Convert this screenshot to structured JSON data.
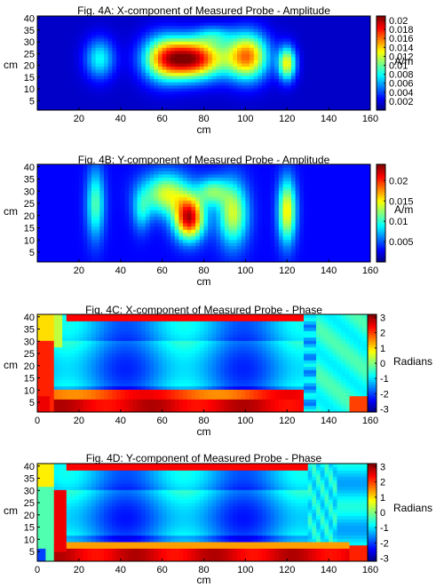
{
  "chart_data": [
    {
      "type": "heatmap",
      "title": "Fig. 4A: X-component of Measured Probe - Amplitude",
      "xlabel": "cm",
      "ylabel": "cm",
      "xlim": [
        0,
        160
      ],
      "ylim": [
        1,
        41
      ],
      "x_ticks": [
        "20",
        "40",
        "60",
        "80",
        "100",
        "120",
        "140",
        "160"
      ],
      "y_ticks": [
        "5",
        "10",
        "15",
        "20",
        "25",
        "30",
        "35",
        "40"
      ],
      "colorbar": {
        "label": "A/m",
        "range": [
          0,
          0.021
        ],
        "ticks": [
          "0.002",
          "0.004",
          "0.006",
          "0.008",
          "0.01",
          "0.012",
          "0.014",
          "0.016",
          "0.018",
          "0.02"
        ]
      },
      "field": "amp_x",
      "peak_regions": [
        {
          "x": 74,
          "y": 23,
          "value": 0.02
        },
        {
          "x": 30,
          "y": 23,
          "value": 0.008
        },
        {
          "x": 101,
          "y": 24,
          "value": 0.016
        },
        {
          "x": 120,
          "y": 21,
          "value": 0.013
        }
      ]
    },
    {
      "type": "heatmap",
      "title": "Fig. 4B: Y-component of Measured Probe - Amplitude",
      "xlabel": "cm",
      "ylabel": "cm",
      "xlim": [
        0,
        160
      ],
      "ylim": [
        1,
        41
      ],
      "x_ticks": [
        "20",
        "40",
        "60",
        "80",
        "100",
        "120",
        "140",
        "160"
      ],
      "y_ticks": [
        "5",
        "10",
        "15",
        "20",
        "25",
        "30",
        "35",
        "40"
      ],
      "colorbar": {
        "label": "A/m",
        "range": [
          0,
          0.024
        ],
        "ticks": [
          "0.005",
          "0.01",
          "0.015",
          "0.02"
        ]
      },
      "field": "amp_y",
      "peak_regions": [
        {
          "x": 73,
          "y": 19,
          "value": 0.022
        },
        {
          "x": 62,
          "y": 29,
          "value": 0.014
        },
        {
          "x": 94,
          "y": 21,
          "value": 0.014
        },
        {
          "x": 120,
          "y": 22,
          "value": 0.016
        }
      ]
    },
    {
      "type": "heatmap",
      "title": "Fig. 4C: X-component of Measured Probe - Phase",
      "xlabel": "cm",
      "ylabel": "cm",
      "xlim": [
        0,
        160
      ],
      "ylim": [
        1,
        41
      ],
      "x_ticks": [
        "0",
        "20",
        "40",
        "60",
        "80",
        "100",
        "120",
        "140",
        "160"
      ],
      "y_ticks": [
        "5",
        "10",
        "15",
        "20",
        "25",
        "30",
        "35",
        "40"
      ],
      "colorbar": {
        "label": "Radians",
        "range": [
          -3.2,
          3.2
        ],
        "ticks": [
          "3",
          "2",
          "1",
          "0",
          "-1",
          "-2",
          "-3"
        ]
      },
      "field": "phase_x"
    },
    {
      "type": "heatmap",
      "title": "Fig. 4D: Y-component of Measured Probe - Phase",
      "xlabel": "cm",
      "ylabel": "cm",
      "xlim": [
        0,
        160
      ],
      "ylim": [
        1,
        41
      ],
      "x_ticks": [
        "0",
        "20",
        "40",
        "60",
        "80",
        "100",
        "120",
        "140",
        "160"
      ],
      "y_ticks": [
        "5",
        "10",
        "15",
        "20",
        "25",
        "30",
        "35",
        "40"
      ],
      "colorbar": {
        "label": "Radians",
        "range": [
          -3.2,
          3.2
        ],
        "ticks": [
          "3",
          "2",
          "1",
          "0",
          "-1",
          "-2",
          "-3"
        ]
      },
      "field": "phase_y"
    }
  ]
}
